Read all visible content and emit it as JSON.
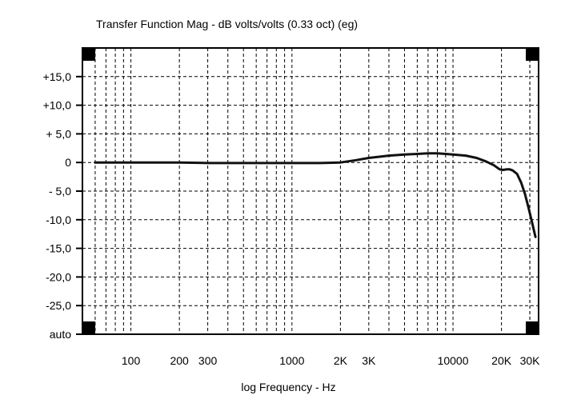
{
  "chart_data": {
    "type": "line",
    "title": "Transfer Function Mag - dB volts/volts (0.33 oct) (eg)",
    "xlabel": "log Frequency - Hz",
    "ylabel": "",
    "x_scale": "log",
    "xlim": [
      50,
      34000
    ],
    "ylim": [
      -30,
      20
    ],
    "grid": true,
    "x_ticks": [
      {
        "value": 100,
        "label": "100"
      },
      {
        "value": 200,
        "label": "200"
      },
      {
        "value": 300,
        "label": "300"
      },
      {
        "value": 1000,
        "label": "1000"
      },
      {
        "value": 2000,
        "label": "2K"
      },
      {
        "value": 3000,
        "label": "3K"
      },
      {
        "value": 10000,
        "label": "10000"
      },
      {
        "value": 20000,
        "label": "20K"
      },
      {
        "value": 30000,
        "label": "30K"
      }
    ],
    "y_ticks": [
      {
        "value": 15,
        "label": "+15,0"
      },
      {
        "value": 10,
        "label": "+10,0"
      },
      {
        "value": 5,
        "label": "+ 5,0"
      },
      {
        "value": 0,
        "label": "0"
      },
      {
        "value": -5,
        "label": "- 5,0"
      },
      {
        "value": -10,
        "label": "-10,0"
      },
      {
        "value": -15,
        "label": "-15,0"
      },
      {
        "value": -20,
        "label": "-20,0"
      },
      {
        "value": -25,
        "label": "-25,0"
      },
      {
        "value": -30,
        "label": "auto"
      }
    ],
    "series": [
      {
        "x": [
          60,
          80,
          100,
          150,
          200,
          300,
          500,
          700,
          1000,
          1500,
          2000,
          2500,
          3000,
          3500,
          4000,
          5000,
          6000,
          7000,
          8000,
          9000,
          10000,
          12000,
          14000,
          16000,
          18000,
          19500,
          20500,
          21500,
          22500,
          23500,
          25000,
          26500,
          28000,
          29500,
          31000,
          32500
        ],
        "values": [
          0,
          0,
          0,
          0,
          0,
          -0.1,
          -0.1,
          -0.1,
          -0.1,
          -0.1,
          0,
          0.4,
          0.8,
          1.0,
          1.2,
          1.4,
          1.5,
          1.6,
          1.6,
          1.5,
          1.4,
          1.2,
          0.8,
          0.2,
          -0.5,
          -1.2,
          -1.3,
          -1.2,
          -1.2,
          -1.4,
          -2.0,
          -3.5,
          -5.5,
          -8.0,
          -10.5,
          -13.0
        ]
      }
    ]
  }
}
